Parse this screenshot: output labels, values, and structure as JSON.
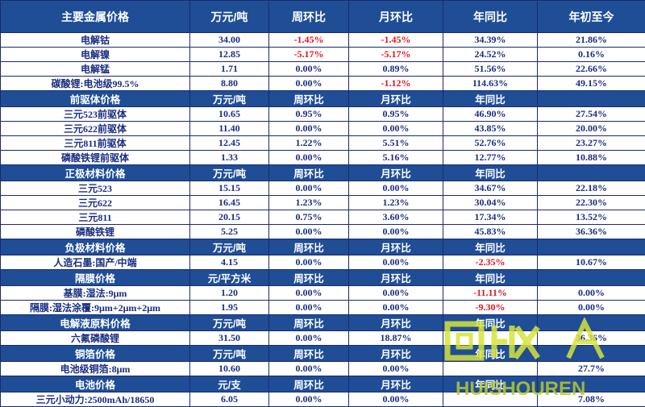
{
  "headers": [
    "主要金属价格",
    "万元/吨",
    "周环比",
    "月环比",
    "年同比",
    "年初至今"
  ],
  "sections": [
    {
      "header": [
        "主要金属价格",
        "万元/吨",
        "周环比",
        "月环比",
        "年同比",
        "年初至今"
      ],
      "rows": [
        [
          "电解钴",
          "34.00",
          "-1.45%",
          "-1.45%",
          "34.39%",
          "21.86%"
        ],
        [
          "电解镍",
          "12.85",
          "-5.17%",
          "-5.17%",
          "24.52%",
          "0.16%"
        ],
        [
          "电解锰",
          "1.71",
          "0.00%",
          "0.89%",
          "51.56%",
          "22.66%"
        ],
        [
          "碳酸锂:电池级99.5%",
          "8.80",
          "0.00%",
          "-1.12%",
          "114.63%",
          "49.15%"
        ]
      ]
    },
    {
      "header": [
        "前驱体价格",
        "万元/吨",
        "周环比",
        "月环比",
        "年同比",
        ""
      ],
      "rows": [
        [
          "三元523前驱体",
          "10.65",
          "0.95%",
          "0.95%",
          "46.90%",
          "27.54%"
        ],
        [
          "三元622前驱体",
          "11.40",
          "0.00%",
          "0.00%",
          "43.85%",
          "20.00%"
        ],
        [
          "三元811前驱体",
          "12.45",
          "1.22%",
          "5.51%",
          "52.76%",
          "23.27%"
        ],
        [
          "磷酸铁锂前驱体",
          "1.33",
          "0.00%",
          "5.16%",
          "12.77%",
          "10.88%"
        ]
      ]
    },
    {
      "header": [
        "正极材料价格",
        "万元/吨",
        "周环比",
        "月环比",
        "年同比",
        ""
      ],
      "rows": [
        [
          "三元523",
          "15.15",
          "0.00%",
          "0.00%",
          "34.67%",
          "22.18%"
        ],
        [
          "三元622",
          "16.45",
          "1.23%",
          "1.23%",
          "30.04%",
          "22.30%"
        ],
        [
          "三元811",
          "20.15",
          "0.75%",
          "3.60%",
          "17.34%",
          "13.52%"
        ],
        [
          "磷酸铁锂",
          "5.25",
          "0.00%",
          "0.00%",
          "45.83%",
          "36.36%"
        ]
      ]
    },
    {
      "header": [
        "负极材料价格",
        "万元/吨",
        "周环比",
        "月环比",
        "年同比",
        ""
      ],
      "rows": [
        [
          "人造石墨:国产/中端",
          "4.15",
          "0.00%",
          "0.00%",
          "-2.35%",
          "10.67%"
        ]
      ]
    },
    {
      "header": [
        "隔膜价格",
        "元/平方米",
        "周环比",
        "月环比",
        "年同比",
        ""
      ],
      "rows": [
        [
          "基膜:湿法:9μm",
          "1.20",
          "0.00%",
          "0.00%",
          "-11.11%",
          "0.00%"
        ],
        [
          "隔膜:湿法涂覆:9μm+2μm+2μm",
          "1.95",
          "0.00%",
          "0.00%",
          "-9.30%",
          "0.00%"
        ]
      ]
    },
    {
      "header": [
        "电解液原料价格",
        "万元/吨",
        "周环比",
        "月环比",
        "年同比",
        ""
      ],
      "rows": [
        [
          "六氟磷酸锂",
          "31.50",
          "0.00%",
          "18.87%",
          "",
          "36.36%"
        ]
      ]
    },
    {
      "header": [
        "铜箔价格",
        "万元/吨",
        "周环比",
        "月环比",
        "年同比",
        ""
      ],
      "rows": [
        [
          "电池级铜箔:8μm",
          "10.60",
          "0.00%",
          "0.00%",
          "",
          "27.7%"
        ]
      ]
    },
    {
      "header": [
        "电池价格",
        "元/支",
        "周环比",
        "月环比",
        "年同比",
        ""
      ],
      "rows": [
        [
          "三元小动力:2500mAh/18650",
          "6.05",
          "0.00%",
          "0.00%",
          "",
          "7.08%"
        ]
      ]
    }
  ],
  "watermark": {
    "logo_text": "回收",
    "brand_text": "HUISHOUREN",
    "colors": {
      "logo": "#d7e43a",
      "brand": "#b9c92a"
    }
  },
  "colors": {
    "header_bg": "#1f4e97",
    "header_text": "#ffffff",
    "data_text": "#1a2d82",
    "negative_text": "#e8121b",
    "border": "#1b2a6b"
  }
}
